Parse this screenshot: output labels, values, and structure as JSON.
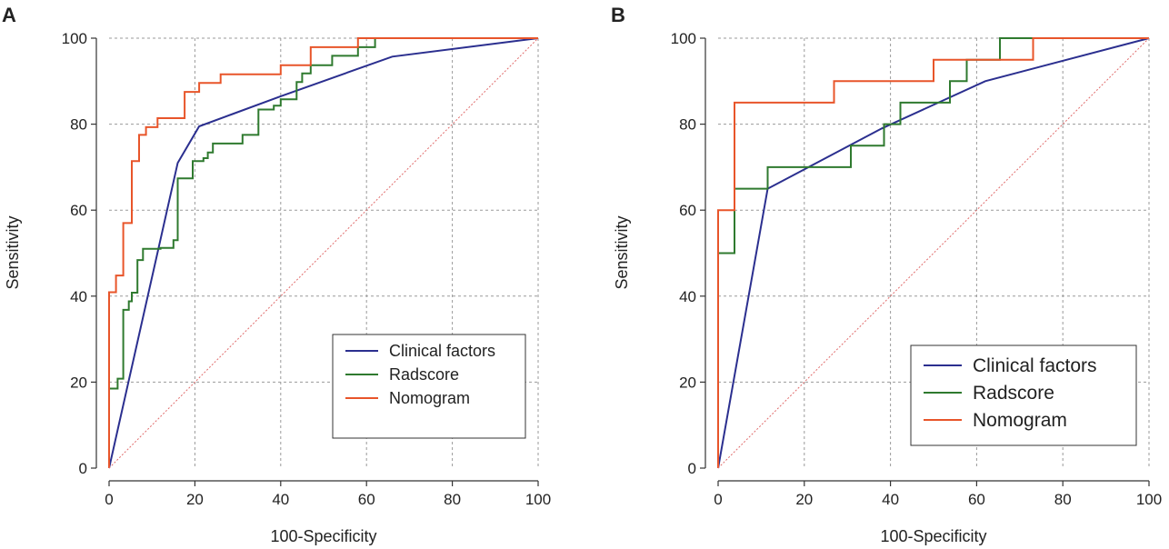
{
  "colors": {
    "clinical": "#2b2f8f",
    "radscore": "#2f7a2f",
    "nomogram": "#e8552a",
    "reference": "#e06c6c",
    "grid": "#9a9a9a",
    "axis": "#333333"
  },
  "chart_data": [
    {
      "panel": "A",
      "type": "line",
      "chart_kind": "ROC curve",
      "xlabel": "100-Specificity",
      "ylabel": "Sensitivity",
      "xlim": [
        0,
        100
      ],
      "ylim": [
        0,
        100
      ],
      "xticks": [
        0,
        20,
        40,
        60,
        80,
        100
      ],
      "yticks": [
        0,
        20,
        40,
        60,
        80,
        100
      ],
      "grid": true,
      "legend_position": "bottom-right",
      "legend": [
        "Clinical factors",
        "Radscore",
        "Nomogram"
      ],
      "series": [
        {
          "name": "Clinical factors",
          "color_key": "clinical",
          "points": [
            [
              0,
              0
            ],
            [
              16,
              71
            ],
            [
              21,
              79.5
            ],
            [
              40,
              86.5
            ],
            [
              66,
              95.7
            ],
            [
              100,
              100
            ]
          ]
        },
        {
          "name": "Radscore",
          "color_key": "radscore",
          "points": [
            [
              0,
              0
            ],
            [
              0,
              18.5
            ],
            [
              2,
              18.5
            ],
            [
              2,
              20.8
            ],
            [
              3.3,
              20.8
            ],
            [
              3.3,
              36.8
            ],
            [
              4.6,
              36.8
            ],
            [
              4.6,
              38.8
            ],
            [
              5.3,
              38.8
            ],
            [
              5.3,
              40.8
            ],
            [
              6.6,
              40.8
            ],
            [
              6.6,
              48.4
            ],
            [
              7.9,
              48.4
            ],
            [
              7.9,
              51
            ],
            [
              12,
              51
            ],
            [
              12,
              51.2
            ],
            [
              15,
              51.2
            ],
            [
              15,
              53
            ],
            [
              16,
              53
            ],
            [
              16,
              67.4
            ],
            [
              19.5,
              67.4
            ],
            [
              19.5,
              71.4
            ],
            [
              22,
              71.4
            ],
            [
              22,
              72.1
            ],
            [
              23,
              72.1
            ],
            [
              23,
              73.4
            ],
            [
              24.2,
              73.4
            ],
            [
              24.2,
              75.5
            ],
            [
              31.1,
              75.5
            ],
            [
              31.1,
              77.5
            ],
            [
              34.8,
              77.5
            ],
            [
              34.8,
              83.4
            ],
            [
              38.4,
              83.4
            ],
            [
              38.4,
              84.3
            ],
            [
              40,
              84.3
            ],
            [
              40,
              85.8
            ],
            [
              43.7,
              85.8
            ],
            [
              43.7,
              89.8
            ],
            [
              45,
              89.8
            ],
            [
              45,
              91.8
            ],
            [
              47,
              91.8
            ],
            [
              47,
              93.7
            ],
            [
              52,
              93.7
            ],
            [
              52,
              95.9
            ],
            [
              58,
              95.9
            ],
            [
              58,
              97.9
            ],
            [
              62,
              97.9
            ],
            [
              62,
              100
            ],
            [
              100,
              100
            ]
          ]
        },
        {
          "name": "Nomogram",
          "color_key": "nomogram",
          "points": [
            [
              0,
              0
            ],
            [
              0,
              40.9
            ],
            [
              1.6,
              40.9
            ],
            [
              1.6,
              44.8
            ],
            [
              3.3,
              44.8
            ],
            [
              3.3,
              57
            ],
            [
              5.3,
              57
            ],
            [
              5.3,
              71.4
            ],
            [
              7,
              71.4
            ],
            [
              7,
              77.5
            ],
            [
              8.6,
              77.5
            ],
            [
              8.6,
              79.3
            ],
            [
              11.3,
              79.3
            ],
            [
              11.3,
              81.4
            ],
            [
              17.6,
              81.4
            ],
            [
              17.6,
              87.5
            ],
            [
              21,
              87.5
            ],
            [
              21,
              89.6
            ],
            [
              26,
              89.6
            ],
            [
              26,
              91.6
            ],
            [
              40,
              91.6
            ],
            [
              40,
              93.7
            ],
            [
              47,
              93.7
            ],
            [
              47,
              97.9
            ],
            [
              58,
              97.9
            ],
            [
              58,
              100
            ],
            [
              100,
              100
            ]
          ]
        },
        {
          "name": "Reference",
          "color_key": "reference",
          "dashed": true,
          "points": [
            [
              0,
              0
            ],
            [
              100,
              100
            ]
          ]
        }
      ]
    },
    {
      "panel": "B",
      "type": "line",
      "chart_kind": "ROC curve",
      "xlabel": "100-Specificity",
      "ylabel": "Sensitivity",
      "xlim": [
        0,
        100
      ],
      "ylim": [
        0,
        100
      ],
      "xticks": [
        0,
        20,
        40,
        60,
        80,
        100
      ],
      "yticks": [
        0,
        20,
        40,
        60,
        80,
        100
      ],
      "grid": true,
      "legend_position": "bottom-right",
      "legend": [
        "Clinical factors",
        "Radscore",
        "Nomogram"
      ],
      "series": [
        {
          "name": "Clinical factors",
          "color_key": "clinical",
          "points": [
            [
              0,
              0
            ],
            [
              11.5,
              65
            ],
            [
              38,
              79
            ],
            [
              62,
              90
            ],
            [
              100,
              100
            ]
          ]
        },
        {
          "name": "Radscore",
          "color_key": "radscore",
          "points": [
            [
              0,
              0
            ],
            [
              0,
              50
            ],
            [
              3.8,
              50
            ],
            [
              3.8,
              65
            ],
            [
              11.5,
              65
            ],
            [
              11.5,
              70
            ],
            [
              30.8,
              70
            ],
            [
              30.8,
              75
            ],
            [
              38.5,
              75
            ],
            [
              38.5,
              80
            ],
            [
              42.3,
              80
            ],
            [
              42.3,
              85
            ],
            [
              53.8,
              85
            ],
            [
              53.8,
              90
            ],
            [
              57.7,
              90
            ],
            [
              57.7,
              95
            ],
            [
              65.4,
              95
            ],
            [
              65.4,
              100
            ],
            [
              100,
              100
            ]
          ]
        },
        {
          "name": "Nomogram",
          "color_key": "nomogram",
          "points": [
            [
              0,
              0
            ],
            [
              0,
              60
            ],
            [
              3.8,
              60
            ],
            [
              3.8,
              85
            ],
            [
              26.9,
              85
            ],
            [
              26.9,
              90
            ],
            [
              50,
              90
            ],
            [
              50,
              95
            ],
            [
              73.1,
              95
            ],
            [
              73.1,
              100
            ],
            [
              100,
              100
            ]
          ]
        },
        {
          "name": "Reference",
          "color_key": "reference",
          "dashed": true,
          "points": [
            [
              0,
              0
            ],
            [
              100,
              100
            ]
          ]
        }
      ]
    }
  ]
}
